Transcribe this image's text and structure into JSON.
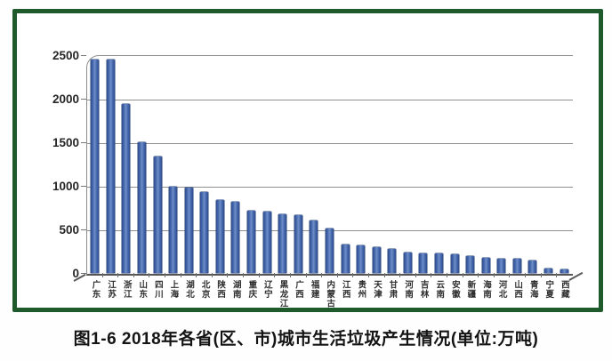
{
  "figure": {
    "caption": "图1-6 2018年各省(区、市)城市生活垃圾产生情况(单位:万吨)"
  },
  "chart_data": {
    "type": "bar",
    "title": "",
    "xlabel": "",
    "ylabel": "",
    "unit": "万吨",
    "categories": [
      "广东",
      "江苏",
      "浙江",
      "山东",
      "四川",
      "上海",
      "湖北",
      "北京",
      "陕西",
      "湖南",
      "重庆",
      "辽宁",
      "黑龙江",
      "广西",
      "福建",
      "内蒙古",
      "江西",
      "贵州",
      "天津",
      "甘肃",
      "河南",
      "吉林",
      "云南",
      "安徽",
      "新疆",
      "海南",
      "河北",
      "山西",
      "青海",
      "宁夏",
      "西藏"
    ],
    "values": [
      2450,
      2445,
      1940,
      1500,
      1340,
      985,
      980,
      930,
      840,
      815,
      712,
      700,
      672,
      660,
      600,
      512,
      322,
      315,
      295,
      275,
      235,
      228,
      220,
      212,
      196,
      176,
      167,
      160,
      140,
      56,
      38
    ],
    "ylim": [
      0,
      2500
    ],
    "yticks": [
      0,
      500,
      1000,
      1500,
      2000,
      2500
    ],
    "grid": true,
    "legend": false,
    "colors": {
      "bar": "#3a5fa5",
      "bar_dark": "#2c4b8e",
      "bar_light": "#6e8fcb",
      "frame": "#1e5a2c",
      "grid": "#8f8f8f",
      "axis_text": "#262626"
    }
  }
}
